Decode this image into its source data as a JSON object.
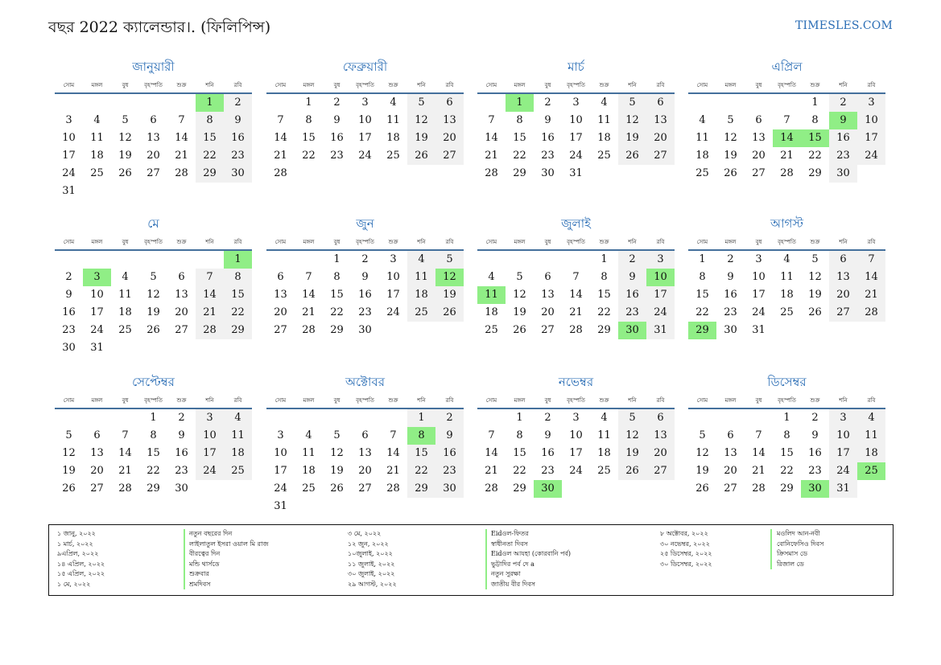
{
  "header": {
    "title": "বছর 2022 ক্যালেন্ডার।. (ফিলিপিন্স)",
    "brand": "TIMESLES.COM"
  },
  "weekdays": [
    "সোম",
    "মঙ্গল",
    "বুধ",
    "বৃহস্পতি",
    "শুক্র",
    "শনি",
    "রবি"
  ],
  "colors": {
    "accent": "#2a6db5",
    "holiday": "#90ee86",
    "weekend": "#f1f1f1",
    "rule": "#44709c"
  },
  "months": [
    {
      "name": "জানুয়ারী",
      "offset": 5,
      "days": 31,
      "holidays": [
        1
      ]
    },
    {
      "name": "ফেব্রুয়ারী",
      "offset": 1,
      "days": 28,
      "holidays": []
    },
    {
      "name": "মার্চ",
      "offset": 1,
      "days": 31,
      "holidays": [
        1
      ]
    },
    {
      "name": "এপ্রিল",
      "offset": 4,
      "days": 30,
      "holidays": [
        9,
        14,
        15
      ]
    },
    {
      "name": "মে",
      "offset": 6,
      "days": 31,
      "holidays": [
        1,
        3
      ]
    },
    {
      "name": "জুন",
      "offset": 2,
      "days": 30,
      "holidays": [
        12
      ]
    },
    {
      "name": "জুলাই",
      "offset": 4,
      "days": 31,
      "holidays": [
        10,
        11,
        30
      ]
    },
    {
      "name": "আগস্ট",
      "offset": 0,
      "days": 31,
      "holidays": [
        29
      ]
    },
    {
      "name": "সেপ্টেম্বর",
      "offset": 3,
      "days": 30,
      "holidays": []
    },
    {
      "name": "অক্টোবর",
      "offset": 5,
      "days": 31,
      "holidays": [
        8
      ]
    },
    {
      "name": "নভেম্বর",
      "offset": 1,
      "days": 30,
      "holidays": [
        30
      ]
    },
    {
      "name": "ডিসেম্বর",
      "offset": 3,
      "days": 31,
      "holidays": [
        25,
        30
      ]
    }
  ],
  "holiday_list": {
    "col1_dates": [
      "১ জানু, ২০২২",
      "১ মার্চ, ২০২২",
      "৯এপ্রিল, ২০২২",
      "১৪ এপ্রিল, ২০২২",
      "১৫ এপ্রিল, ২০২২",
      "১ মে, ২০২২"
    ],
    "col1_names": [
      "নতুন বছরের দিন",
      "লাইলাতুল ইসরা ওয়াল মি রাজ",
      "বীরত্বের দিন",
      "মন্ডি থার্সডে",
      "শুক্রবার",
      "শ্রমদিবস"
    ],
    "col2_dates": [
      "৩ মে, ২০২২",
      "১২ জুন, ২০২২",
      "১০জুলাই, ২০২২",
      "১১ জুলাই, ২০২২",
      "৩০ জুলাই, ২০২২",
      "২৯ আগস্ট, ২০২২"
    ],
    "col2_names": [
      "Eidওল-ফিতর",
      "স্বাধীনতা দিবস",
      "Eidওল আযহা (কোরবানি পর্ব)",
      "ভুট্টাদির পর্ব দে a",
      "নতুন সুরক্ষা",
      "জাতীয় বীর দিবস"
    ],
    "col3_dates": [
      "৮ অক্টোবর, ২০২২",
      "৩০ নভেম্বর, ২০২২",
      "২৫ ডিসেম্বর, ২০২২",
      "৩০ ডিসেম্বর, ২০২২"
    ],
    "col3_names": [
      "মওলিদ আন-নবী",
      "বোনিফেসিও দিবস",
      "ক্রিসমাস ডে",
      "রিজাল ডে"
    ]
  }
}
